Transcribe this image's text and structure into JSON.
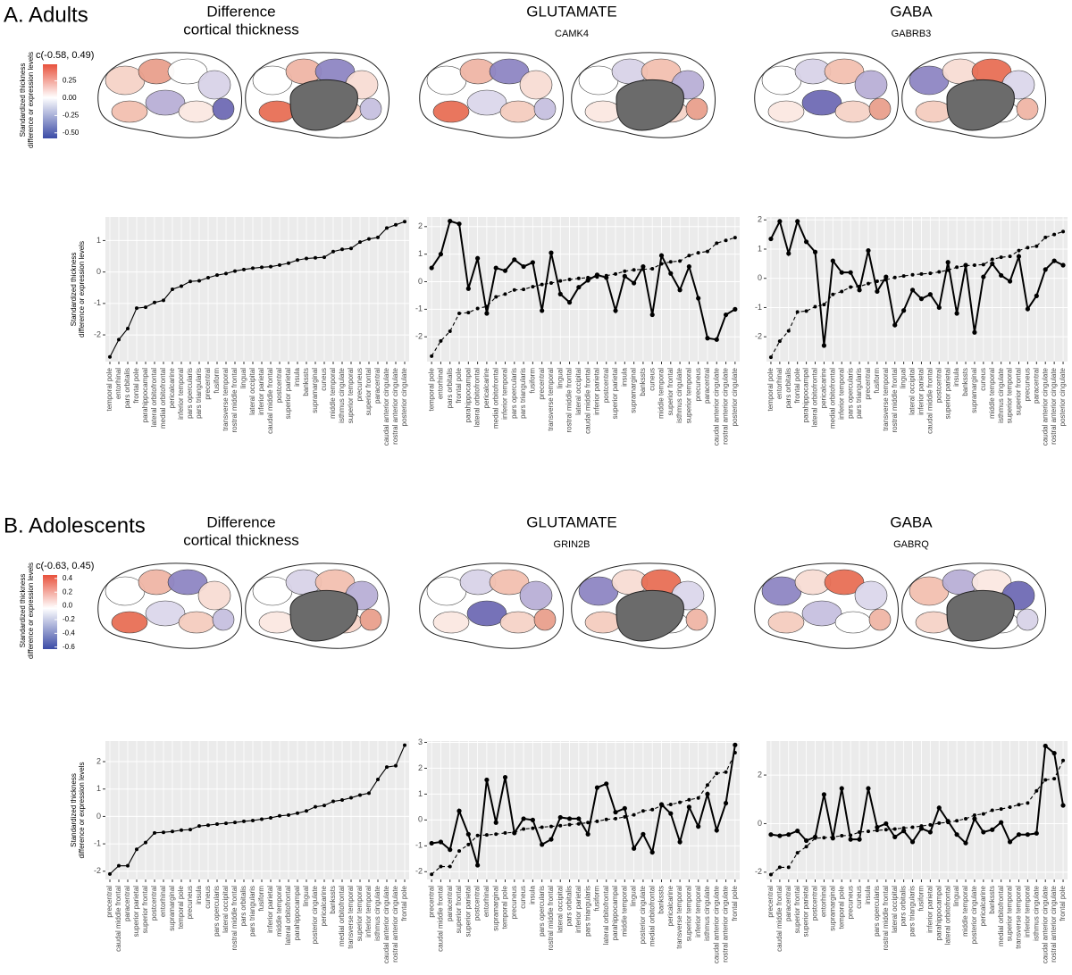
{
  "panels": [
    {
      "label": "A. Adults",
      "columns": [
        {
          "title": [
            "Difference",
            "cortical thickness"
          ]
        },
        {
          "title": "GLUTAMATE",
          "subtitle": "CAMK4"
        },
        {
          "title": "GABA",
          "subtitle": "GABRB3"
        }
      ],
      "colorbar": {
        "title": "c(-0.58, 0.49)",
        "label": [
          "Standardized thickness",
          "difference or expression levels"
        ],
        "lim": [
          -0.58,
          0.49
        ],
        "ticks": [
          {
            "value": 0.25,
            "label": "0.25"
          },
          {
            "value": 0,
            "label": "0.00"
          },
          {
            "value": -0.25,
            "label": "-0.25"
          },
          {
            "value": -0.5,
            "label": "-0.50"
          }
        ]
      }
    },
    {
      "label": "B. Adolescents",
      "columns": [
        {
          "title": [
            "Difference",
            "cortical thickness"
          ]
        },
        {
          "title": "GLUTAMATE",
          "subtitle": "GRIN2B"
        },
        {
          "title": "GABA",
          "subtitle": "GABRQ"
        }
      ],
      "colorbar": {
        "title": "c(-0.63, 0.45)",
        "label": [
          "Standardized thickness",
          "difference or expression levels"
        ],
        "lim": [
          -0.63,
          0.45
        ],
        "ticks": [
          0.4,
          0.2,
          {
            "value": 0,
            "label": "0.0"
          },
          -0.2,
          -0.4,
          -0.6
        ]
      }
    }
  ],
  "chart_data": [
    {
      "type": "line",
      "ylabel": [
        "Standardized thickness",
        "difference or expression levels"
      ],
      "categories": [
        "temporal pole",
        "entorhinal",
        "pars orbitalis",
        "frontal pole",
        "parahippocampal",
        "lateral orbitofrontal",
        "medial orbitofrontal",
        "pericalcarine",
        "inferior temporal",
        "pars opercularis",
        "pars triangularis",
        "precentral",
        "fusiform",
        "transverse temporal",
        "rostral middle frontal",
        "lingual",
        "lateral occipital",
        "inferior parietal",
        "caudal middle frontal",
        "postcentral",
        "superior parietal",
        "insula",
        "bankssts",
        "supramarginal",
        "cuneus",
        "middle temporal",
        "isthmus cingulate",
        "superior temporal",
        "precuneus",
        "superior frontal",
        "paracentral",
        "caudal anterior cingulate",
        "rostral anterior cingulate",
        "posterior cingulate"
      ],
      "ylim": [
        -2.85,
        1.75
      ],
      "yticks": [
        -2,
        -1,
        0,
        1
      ],
      "grid": true,
      "series": [
        {
          "color": "#000000",
          "style": "solid",
          "values": [
            -2.7,
            -2.15,
            -1.8,
            -1.15,
            -1.12,
            -0.97,
            -0.9,
            -0.55,
            -0.45,
            -0.3,
            -0.28,
            -0.18,
            -0.1,
            -0.05,
            0.03,
            0.08,
            0.12,
            0.15,
            0.17,
            0.22,
            0.28,
            0.38,
            0.43,
            0.45,
            0.47,
            0.65,
            0.72,
            0.75,
            0.95,
            1.05,
            1.1,
            1.4,
            1.5,
            1.6
          ]
        }
      ]
    },
    {
      "type": "line",
      "categories": [
        "temporal pole",
        "entorhinal",
        "pars orbitalis",
        "frontal pole",
        "parahippocampal",
        "lateral orbitofrontal",
        "pericalcarine",
        "medial orbitofrontal",
        "inferior temporal",
        "pars opercularis",
        "pars triangularis",
        "fusiform",
        "precentral",
        "transverse temporal",
        "lingual",
        "rostral middle frontal",
        "lateral occipital",
        "caudal middle frontal",
        "inferior parietal",
        "postcentral",
        "superior parietal",
        "insula",
        "supramarginal",
        "bankssts",
        "cuneus",
        "middle temporal",
        "superior frontal",
        "isthmus cingulate",
        "superior temporal",
        "precuneus",
        "paracentral",
        "caudal anterior cingulate",
        "rostral anterior cingulate",
        "posterior cingulate"
      ],
      "ylim": [
        -2.9,
        2.35
      ],
      "yticks": [
        -2,
        -1,
        0,
        1,
        2
      ],
      "grid": true,
      "series": [
        {
          "color": "#000000",
          "style": "dashed",
          "values": [
            -2.7,
            -2.15,
            -1.8,
            -1.15,
            -1.12,
            -0.97,
            -0.9,
            -0.55,
            -0.45,
            -0.3,
            -0.28,
            -0.18,
            -0.1,
            -0.05,
            0.03,
            0.08,
            0.12,
            0.15,
            0.17,
            0.22,
            0.28,
            0.38,
            0.43,
            0.45,
            0.47,
            0.65,
            0.72,
            0.75,
            0.95,
            1.05,
            1.1,
            1.4,
            1.5,
            1.6
          ]
        },
        {
          "color": "#000000",
          "style": "solid",
          "values": [
            0.5,
            1.0,
            2.2,
            2.1,
            -0.25,
            0.85,
            -1.15,
            0.5,
            0.4,
            0.8,
            0.55,
            0.7,
            -1.05,
            1.05,
            -0.45,
            -0.75,
            -0.2,
            0.05,
            0.25,
            0.15,
            -1.05,
            0.2,
            -0.05,
            0.55,
            -1.2,
            0.95,
            0.3,
            -0.3,
            0.55,
            -0.6,
            -2.05,
            -2.1,
            -1.2,
            -1.0
          ]
        }
      ]
    },
    {
      "type": "line",
      "categories": [
        "temporal pole",
        "entorhinal",
        "pars orbitalis",
        "frontal pole",
        "parahippocampal",
        "lateral orbitofrontal",
        "pericalcarine",
        "medial orbitofrontal",
        "inferior temporal",
        "pars opercularis",
        "pars triangularis",
        "precentral",
        "fusiform",
        "transverse temporal",
        "rostral middle frontal",
        "lingual",
        "lateral occipital",
        "inferior parietal",
        "caudal middle frontal",
        "postcentral",
        "superior parietal",
        "insula",
        "bankssts",
        "supramarginal",
        "cuneus",
        "middle temporal",
        "isthmus cingulate",
        "superior temporal",
        "superior frontal",
        "precuneus",
        "paracentral",
        "caudal anterior cingulate",
        "rostral anterior cingulate",
        "posterior cingulate"
      ],
      "ylim": [
        -2.85,
        2.1
      ],
      "yticks": [
        -2,
        -1,
        0,
        1,
        2
      ],
      "grid": true,
      "series": [
        {
          "color": "#000000",
          "style": "dashed",
          "values": [
            -2.7,
            -2.15,
            -1.8,
            -1.15,
            -1.12,
            -0.97,
            -0.9,
            -0.55,
            -0.45,
            -0.3,
            -0.28,
            -0.18,
            -0.1,
            -0.05,
            0.03,
            0.08,
            0.12,
            0.15,
            0.17,
            0.22,
            0.28,
            0.38,
            0.43,
            0.45,
            0.47,
            0.65,
            0.72,
            0.75,
            0.95,
            1.05,
            1.1,
            1.4,
            1.5,
            1.6
          ]
        },
        {
          "color": "#000000",
          "style": "solid",
          "values": [
            1.35,
            1.95,
            0.85,
            1.95,
            1.25,
            0.9,
            -2.3,
            0.6,
            0.2,
            0.2,
            -0.4,
            0.95,
            -0.45,
            0.05,
            -1.6,
            -1.1,
            -0.4,
            -0.7,
            -0.55,
            -1.0,
            0.55,
            -1.2,
            0.45,
            -1.85,
            0.05,
            0.5,
            0.1,
            -0.1,
            0.75,
            -1.05,
            -0.6,
            0.3,
            0.6,
            0.45
          ]
        }
      ]
    },
    {
      "type": "line",
      "ylabel": [
        "Standardized thickness",
        "difference or expression levels"
      ],
      "categories": [
        "precentral",
        "caudal middle frontal",
        "paracentral",
        "superior parietal",
        "superior frontal",
        "postcentral",
        "entorhinal",
        "supramarginal",
        "temporal pole",
        "precuneus",
        "insula",
        "cuneus",
        "pars opercularis",
        "lateral occipital",
        "rostral middle frontal",
        "pars orbitalis",
        "pars triangularis",
        "fusiform",
        "inferior parietal",
        "middle temporal",
        "lateral orbitofrontal",
        "parahippocampal",
        "lingual",
        "posterior cingulate",
        "pericalcarine",
        "bankssts",
        "medial orbitofrontal",
        "transverse temporal",
        "superior temporal",
        "inferior temporal",
        "isthmus cingulate",
        "caudal anterior cingulate",
        "rostral anterior cingulate",
        "frontal pole"
      ],
      "ylim": [
        -2.3,
        2.75
      ],
      "yticks": [
        -2,
        -1,
        0,
        1,
        2
      ],
      "grid": true,
      "series": [
        {
          "color": "#000000",
          "style": "solid",
          "values": [
            -2.1,
            -1.8,
            -1.8,
            -1.2,
            -0.95,
            -0.6,
            -0.58,
            -0.55,
            -0.5,
            -0.48,
            -0.35,
            -0.32,
            -0.28,
            -0.25,
            -0.22,
            -0.18,
            -0.15,
            -0.1,
            -0.05,
            0.02,
            0.05,
            0.12,
            0.2,
            0.35,
            0.4,
            0.55,
            0.6,
            0.68,
            0.78,
            0.85,
            1.35,
            1.8,
            1.85,
            2.6
          ]
        }
      ]
    },
    {
      "type": "line",
      "categories": [
        "precentral",
        "caudal middle frontal",
        "paracentral",
        "superior frontal",
        "superior parietal",
        "postcentral",
        "entorhinal",
        "supramarginal",
        "temporal pole",
        "precuneus",
        "cuneus",
        "insula",
        "pars opercularis",
        "rostral middle frontal",
        "lateral occipital",
        "pars orbitalis",
        "inferior parietal",
        "pars triangularis",
        "fusiform",
        "lateral orbitofrontal",
        "parahippocampal",
        "middle temporal",
        "lingual",
        "posterior cingulate",
        "medial orbitofrontal",
        "bankssts",
        "pericalcarine",
        "transverse temporal",
        "superior temporal",
        "inferior temporal",
        "isthmus cingulate",
        "caudal anterior cingulate",
        "rostral anterior cingulate",
        "frontal pole"
      ],
      "ylim": [
        -2.3,
        3.05
      ],
      "yticks": [
        -2,
        -1,
        0,
        1,
        2,
        3
      ],
      "grid": true,
      "series": [
        {
          "color": "#000000",
          "style": "dashed",
          "values": [
            -2.1,
            -1.8,
            -1.8,
            -1.2,
            -0.95,
            -0.6,
            -0.58,
            -0.55,
            -0.5,
            -0.48,
            -0.35,
            -0.32,
            -0.28,
            -0.25,
            -0.22,
            -0.18,
            -0.15,
            -0.1,
            -0.05,
            0.02,
            0.05,
            0.12,
            0.2,
            0.35,
            0.4,
            0.55,
            0.6,
            0.68,
            0.78,
            0.85,
            1.35,
            1.8,
            1.85,
            2.6
          ]
        },
        {
          "color": "#000000",
          "style": "solid",
          "values": [
            -0.9,
            -0.85,
            -1.15,
            0.35,
            -0.55,
            -1.75,
            1.55,
            -0.1,
            1.65,
            -0.5,
            0.05,
            0.0,
            -0.95,
            -0.75,
            0.1,
            0.05,
            0.05,
            -0.55,
            1.25,
            1.4,
            0.3,
            0.45,
            -1.1,
            -0.55,
            -1.25,
            0.6,
            0.25,
            -0.85,
            0.5,
            -0.25,
            1.0,
            -0.4,
            0.65,
            2.9
          ]
        }
      ]
    },
    {
      "type": "line",
      "categories": [
        "precentral",
        "caudal middle frontal",
        "paracentral",
        "superior frontal",
        "superior parietal",
        "postcentral",
        "entorhinal",
        "supramarginal",
        "temporal pole",
        "precuneus",
        "cuneus",
        "insula",
        "pars opercularis",
        "rostral middle frontal",
        "lateral occipital",
        "pars orbitalis",
        "pars triangularis",
        "fusiform",
        "inferior parietal",
        "parahippocampal",
        "lateral orbitofrontal",
        "lingual",
        "middle temporal",
        "posterior cingulate",
        "pericalcarine",
        "bankssts",
        "medial orbitofrontal",
        "superior temporal",
        "transverse temporal",
        "inferior temporal",
        "isthmus cingulate",
        "caudal anterior cingulate",
        "rostral anterior cingulate",
        "frontal pole"
      ],
      "ylim": [
        -2.3,
        3.4
      ],
      "yticks": [
        -2,
        0,
        2
      ],
      "grid": true,
      "series": [
        {
          "color": "#000000",
          "style": "dashed",
          "values": [
            -2.1,
            -1.8,
            -1.8,
            -1.2,
            -0.95,
            -0.6,
            -0.58,
            -0.55,
            -0.5,
            -0.48,
            -0.35,
            -0.32,
            -0.28,
            -0.25,
            -0.22,
            -0.18,
            -0.15,
            -0.1,
            -0.05,
            0.02,
            0.05,
            0.12,
            0.2,
            0.35,
            0.4,
            0.55,
            0.6,
            0.68,
            0.78,
            0.85,
            1.35,
            1.8,
            1.85,
            2.6
          ]
        },
        {
          "color": "#000000",
          "style": "solid",
          "values": [
            -0.45,
            -0.5,
            -0.45,
            -0.3,
            -0.7,
            -0.55,
            1.2,
            -0.6,
            1.45,
            -0.65,
            -0.65,
            1.45,
            -0.15,
            0.0,
            -0.55,
            -0.3,
            -0.75,
            -0.2,
            -0.35,
            0.65,
            0.1,
            -0.45,
            -0.8,
            0.2,
            -0.35,
            -0.25,
            0.05,
            -0.75,
            -0.45,
            -0.45,
            -0.4,
            3.2,
            2.9,
            0.75
          ]
        }
      ]
    }
  ]
}
